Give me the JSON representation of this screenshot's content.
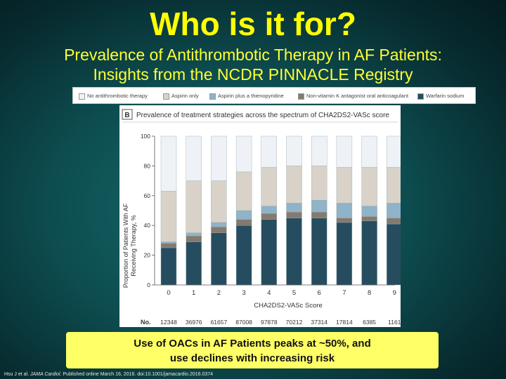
{
  "slide": {
    "title": "Who is it for?",
    "subtitle_line1": "Prevalence of Antithrombotic Therapy in AF Patients:",
    "subtitle_line2": "Insights from the NCDR PINNACLE Registry",
    "callout_line1": "Use of OACs in AF Patients peaks at ~50%, and",
    "callout_line2": "use declines with increasing risk",
    "citation_prefix": "Hsu J et al. ",
    "citation_journal": "JAMA Cardiol",
    "citation_suffix": ". Published online March 16, 2016. doi:10.1001/jamacardio.2016.0374"
  },
  "legend": [
    {
      "label": "No antithrombotic therapy",
      "color": "#eef2f7"
    },
    {
      "label": "Aspirin only",
      "color": "#d8d2c9"
    },
    {
      "label": "Aspirin plus a thienopyridine",
      "color": "#8fb3c8"
    },
    {
      "label": "Non-vitamin K antagonist oral anticoagulant",
      "color": "#857a70"
    },
    {
      "label": "Warfarin sodium",
      "color": "#264d5f"
    }
  ],
  "chart_data": {
    "type": "bar",
    "stacked": true,
    "panel_label": "B",
    "title_prefix": "Prevalence of treatment strategies across the spectrum of ",
    "score_label": "CHA2DS2-VASc score",
    "xlabel": "CHA2DS2-VASc Score",
    "ylabel_line1": "Proportion of Patients With AF",
    "ylabel_line2": "Receiving Therapy, %",
    "ylim": [
      0,
      100
    ],
    "yticks": [
      "0",
      "20",
      "40",
      "60",
      "80",
      "100"
    ],
    "categories": [
      "0",
      "1",
      "2",
      "3",
      "4",
      "5",
      "6",
      "7",
      "8",
      "9"
    ],
    "n_label": "No.",
    "n_values": [
      "12348",
      "36976",
      "61657",
      "87008",
      "97878",
      "70212",
      "37314",
      "17814",
      "6385",
      "1161"
    ],
    "series": [
      {
        "name": "Warfarin sodium",
        "values": [
          25,
          29,
          35,
          40,
          44,
          45,
          45,
          42,
          43,
          41
        ]
      },
      {
        "name": "Non-vitamin K antagonist oral anticoagulant",
        "values": [
          3,
          4,
          4,
          4,
          4,
          4,
          4,
          3,
          3,
          4
        ]
      },
      {
        "name": "Aspirin plus a thienopyridine",
        "values": [
          1,
          2,
          3,
          6,
          5,
          6,
          8,
          10,
          7,
          10
        ]
      },
      {
        "name": "Aspirin only",
        "values": [
          34,
          35,
          28,
          26,
          26,
          25,
          23,
          24,
          26,
          24
        ]
      },
      {
        "name": "No antithrombotic therapy",
        "values": [
          37,
          30,
          30,
          24,
          21,
          20,
          20,
          21,
          21,
          21
        ]
      }
    ]
  }
}
